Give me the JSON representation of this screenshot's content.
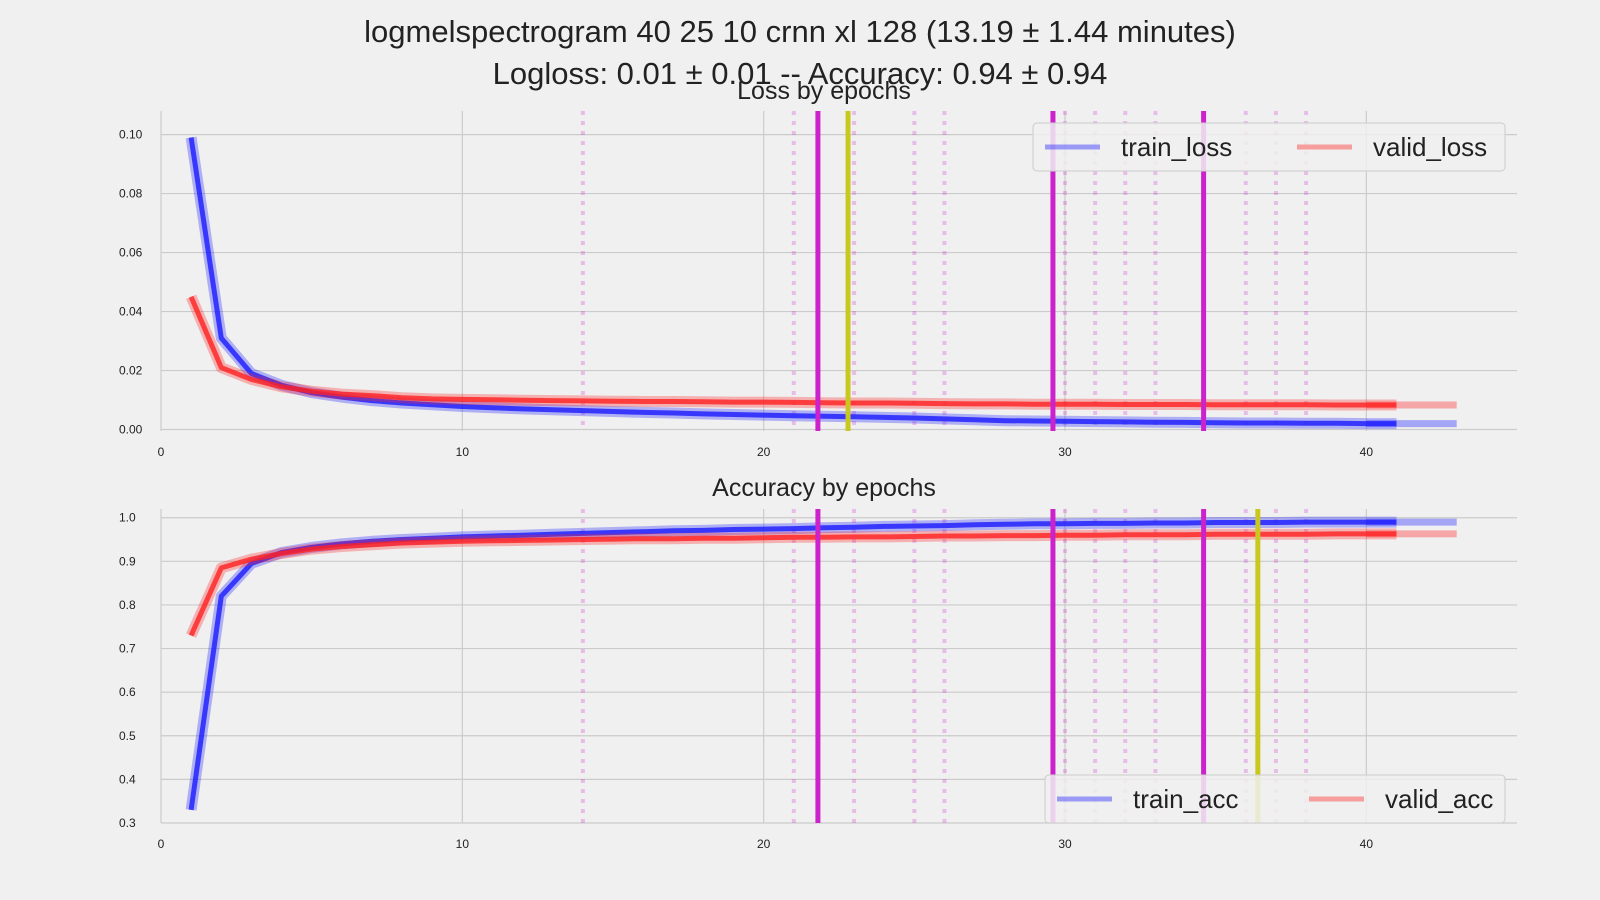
{
  "figure": {
    "title_line1": "logmelspectrogram 40 25 10  crnn xl 128   (13.19 ± 1.44 minutes)",
    "title_line2": "Logloss: 0.01 ± 0.01  -- Accuracy:  0.94 ± 0.94"
  },
  "colors": {
    "background": "#f0f0f0",
    "grid": "#cbcbcb",
    "train": "#1a1aff",
    "valid": "#ff2020",
    "magenta": "#cc22cc",
    "olive": "#c8c820"
  },
  "chart_data": [
    {
      "type": "line",
      "title": "Loss by epochs",
      "xlim": [
        0,
        45
      ],
      "ylim": [
        -0.0005,
        0.108
      ],
      "xticks": [
        0,
        10,
        20,
        30,
        40
      ],
      "yticks": [
        0.0,
        0.02,
        0.04,
        0.06,
        0.08,
        0.1
      ],
      "ytick_labels": [
        "0.00",
        "0.02",
        "0.04",
        "0.06",
        "0.08",
        "0.10"
      ],
      "grid": true,
      "legend": "top-right",
      "legend_entries": [
        "train_loss",
        "valid_loss"
      ],
      "series": [
        {
          "name": "train_loss",
          "color_key": "train",
          "x": [
            1,
            2,
            3,
            4,
            5,
            6,
            7,
            8,
            9,
            10,
            11,
            12,
            13,
            14,
            15,
            16,
            17,
            18,
            19,
            20,
            21,
            22,
            23,
            24,
            25,
            26,
            27,
            28,
            29,
            30,
            31,
            32,
            33,
            34,
            35,
            36,
            37,
            38,
            39,
            40,
            41
          ],
          "y": [
            0.099,
            0.031,
            0.019,
            0.015,
            0.0125,
            0.011,
            0.0098,
            0.009,
            0.0084,
            0.0078,
            0.0074,
            0.007,
            0.0067,
            0.0064,
            0.0061,
            0.0058,
            0.0056,
            0.0053,
            0.0051,
            0.0049,
            0.0047,
            0.0045,
            0.0043,
            0.0041,
            0.0039,
            0.0036,
            0.0033,
            0.003,
            0.0029,
            0.0028,
            0.0027,
            0.0026,
            0.0025,
            0.0024,
            0.0023,
            0.0022,
            0.0022,
            0.0021,
            0.0021,
            0.002,
            0.002
          ]
        },
        {
          "name": "valid_loss",
          "color_key": "valid",
          "x": [
            1,
            2,
            3,
            4,
            5,
            6,
            7,
            8,
            9,
            10,
            11,
            12,
            13,
            14,
            15,
            16,
            17,
            18,
            19,
            20,
            21,
            22,
            23,
            24,
            25,
            26,
            27,
            28,
            29,
            30,
            31,
            32,
            33,
            34,
            35,
            36,
            37,
            38,
            39,
            40,
            41
          ],
          "y": [
            0.045,
            0.021,
            0.017,
            0.0145,
            0.013,
            0.012,
            0.0115,
            0.0108,
            0.0104,
            0.0102,
            0.0101,
            0.0099,
            0.0098,
            0.0097,
            0.0096,
            0.0095,
            0.0095,
            0.0094,
            0.0093,
            0.0093,
            0.0092,
            0.0091,
            0.009,
            0.009,
            0.0089,
            0.0088,
            0.0087,
            0.0087,
            0.0086,
            0.0086,
            0.0086,
            0.0085,
            0.0085,
            0.0085,
            0.0084,
            0.0084,
            0.0084,
            0.0084,
            0.0083,
            0.0083,
            0.0083
          ]
        }
      ],
      "vlines_solid": [
        {
          "x": 21.8,
          "color_key": "magenta"
        },
        {
          "x": 29.6,
          "color_key": "magenta"
        },
        {
          "x": 34.6,
          "color_key": "magenta"
        },
        {
          "x": 22.8,
          "color_key": "olive"
        }
      ],
      "vlines_dotted": [
        14,
        21,
        23,
        25,
        26,
        30,
        31,
        32,
        33,
        36,
        37,
        38
      ]
    },
    {
      "type": "line",
      "title": "Accuracy by epochs",
      "xlim": [
        0,
        45
      ],
      "ylim": [
        0.3,
        1.02
      ],
      "xticks": [
        0,
        10,
        20,
        30,
        40
      ],
      "yticks": [
        0.3,
        0.4,
        0.5,
        0.6,
        0.7,
        0.8,
        0.9,
        1.0
      ],
      "ytick_labels": [
        "0.3",
        "0.4",
        "0.5",
        "0.6",
        "0.7",
        "0.8",
        "0.9",
        "1.0"
      ],
      "grid": true,
      "legend": "bottom-right",
      "legend_entries": [
        "train_acc",
        "valid_acc"
      ],
      "series": [
        {
          "name": "train_acc",
          "color_key": "train",
          "x": [
            1,
            2,
            3,
            4,
            5,
            6,
            7,
            8,
            9,
            10,
            11,
            12,
            13,
            14,
            15,
            16,
            17,
            18,
            19,
            20,
            21,
            22,
            23,
            24,
            25,
            26,
            27,
            28,
            29,
            30,
            31,
            32,
            33,
            34,
            35,
            36,
            37,
            38,
            39,
            40,
            41
          ],
          "y": [
            0.33,
            0.82,
            0.895,
            0.92,
            0.932,
            0.94,
            0.946,
            0.95,
            0.953,
            0.956,
            0.958,
            0.96,
            0.962,
            0.964,
            0.966,
            0.968,
            0.97,
            0.971,
            0.973,
            0.974,
            0.975,
            0.977,
            0.978,
            0.98,
            0.981,
            0.982,
            0.984,
            0.985,
            0.986,
            0.986,
            0.987,
            0.987,
            0.988,
            0.988,
            0.989,
            0.989,
            0.989,
            0.99,
            0.99,
            0.99,
            0.99
          ]
        },
        {
          "name": "valid_acc",
          "color_key": "valid",
          "x": [
            1,
            2,
            3,
            4,
            5,
            6,
            7,
            8,
            9,
            10,
            11,
            12,
            13,
            14,
            15,
            16,
            17,
            18,
            19,
            20,
            21,
            22,
            23,
            24,
            25,
            26,
            27,
            28,
            29,
            30,
            31,
            32,
            33,
            34,
            35,
            36,
            37,
            38,
            39,
            40,
            41
          ],
          "y": [
            0.73,
            0.885,
            0.905,
            0.918,
            0.928,
            0.934,
            0.938,
            0.942,
            0.944,
            0.946,
            0.947,
            0.948,
            0.949,
            0.95,
            0.951,
            0.952,
            0.952,
            0.953,
            0.953,
            0.954,
            0.955,
            0.955,
            0.956,
            0.956,
            0.957,
            0.958,
            0.958,
            0.959,
            0.959,
            0.96,
            0.96,
            0.961,
            0.961,
            0.961,
            0.962,
            0.962,
            0.962,
            0.962,
            0.963,
            0.963,
            0.963
          ]
        }
      ],
      "vlines_solid": [
        {
          "x": 21.8,
          "color_key": "magenta"
        },
        {
          "x": 29.6,
          "color_key": "magenta"
        },
        {
          "x": 34.6,
          "color_key": "magenta"
        },
        {
          "x": 36.4,
          "color_key": "olive"
        }
      ],
      "vlines_dotted": [
        14,
        21,
        23,
        25,
        26,
        30,
        31,
        32,
        33,
        36,
        37,
        38
      ]
    }
  ]
}
